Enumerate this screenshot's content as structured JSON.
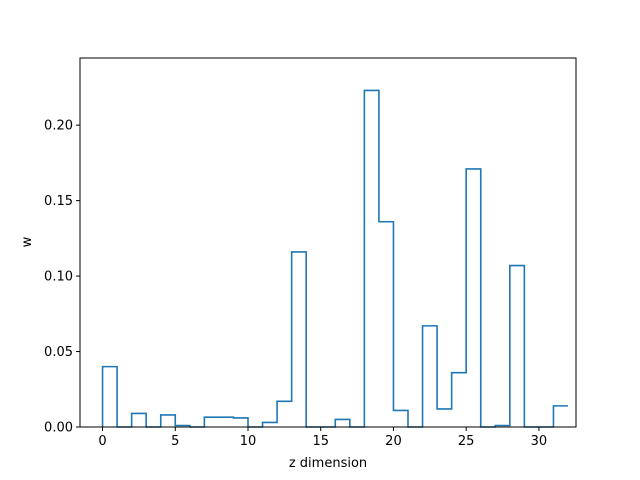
{
  "chart_data": {
    "type": "step",
    "title": "",
    "xlabel": "z dimension",
    "ylabel": "w",
    "xlim": [
      -1.55,
      32.55
    ],
    "ylim": [
      0,
      0.2445
    ],
    "grid": false,
    "line_color": "#1f77b4",
    "x_ticks": [
      0,
      5,
      10,
      15,
      20,
      25,
      30
    ],
    "x_tick_labels": [
      "0",
      "5",
      "10",
      "15",
      "20",
      "25",
      "30"
    ],
    "y_ticks": [
      0,
      0.05,
      0.1,
      0.15,
      0.2
    ],
    "y_tick_labels": [
      "0.00",
      "0.05",
      "0.10",
      "0.15",
      "0.20"
    ],
    "x": [
      0,
      1,
      2,
      3,
      4,
      5,
      6,
      7,
      8,
      9,
      10,
      11,
      12,
      13,
      14,
      15,
      16,
      17,
      18,
      19,
      20,
      21,
      22,
      23,
      24,
      25,
      26,
      27,
      28,
      29,
      30,
      31
    ],
    "values": [
      0.04,
      0.0,
      0.009,
      0.0,
      0.008,
      0.001,
      0.0,
      0.0065,
      0.0065,
      0.006,
      0.0,
      0.003,
      0.017,
      0.116,
      0.0,
      0.0,
      0.005,
      0.0,
      0.223,
      0.136,
      0.011,
      0.0,
      0.067,
      0.012,
      0.036,
      0.171,
      0.0,
      0.001,
      0.107,
      0.0,
      0.0,
      0.014
    ]
  }
}
